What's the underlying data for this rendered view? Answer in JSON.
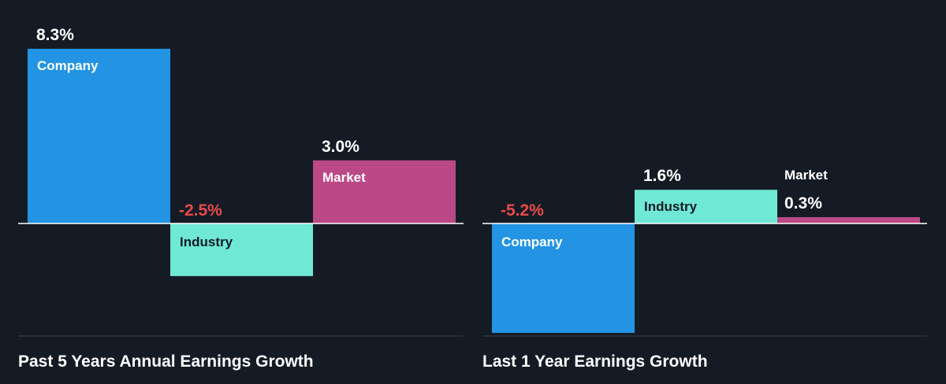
{
  "background": "#151b24",
  "chart_data": [
    {
      "type": "bar",
      "title": "Past 5 Years Annual Earnings Growth",
      "categories": [
        "Company",
        "Industry",
        "Market"
      ],
      "values": [
        8.3,
        -2.5,
        3.0
      ],
      "value_labels": [
        "8.3%",
        "-2.5%",
        "3.0%"
      ],
      "colors": [
        "#2394e3",
        "#6fe8d5",
        "#bb4887"
      ],
      "label_colors": [
        "#ffffff",
        "#151b24",
        "#ffffff"
      ],
      "value_colors": [
        "#ffffff",
        "#e84a4a",
        "#ffffff"
      ],
      "ylim": [
        -5.4,
        8.3
      ],
      "grid": false,
      "legend": "none"
    },
    {
      "type": "bar",
      "title": "Last 1 Year Earnings Growth",
      "categories": [
        "Company",
        "Industry",
        "Market"
      ],
      "values": [
        -5.2,
        1.6,
        0.3
      ],
      "value_labels": [
        "-5.2%",
        "1.6%",
        "0.3%"
      ],
      "colors": [
        "#2394e3",
        "#6fe8d5",
        "#bb4887"
      ],
      "label_colors": [
        "#ffffff",
        "#151b24",
        "#ffffff"
      ],
      "value_colors": [
        "#e84a4a",
        "#ffffff",
        "#ffffff"
      ],
      "ylim": [
        -5.2,
        8.3
      ],
      "grid": false,
      "legend": "none"
    }
  ]
}
